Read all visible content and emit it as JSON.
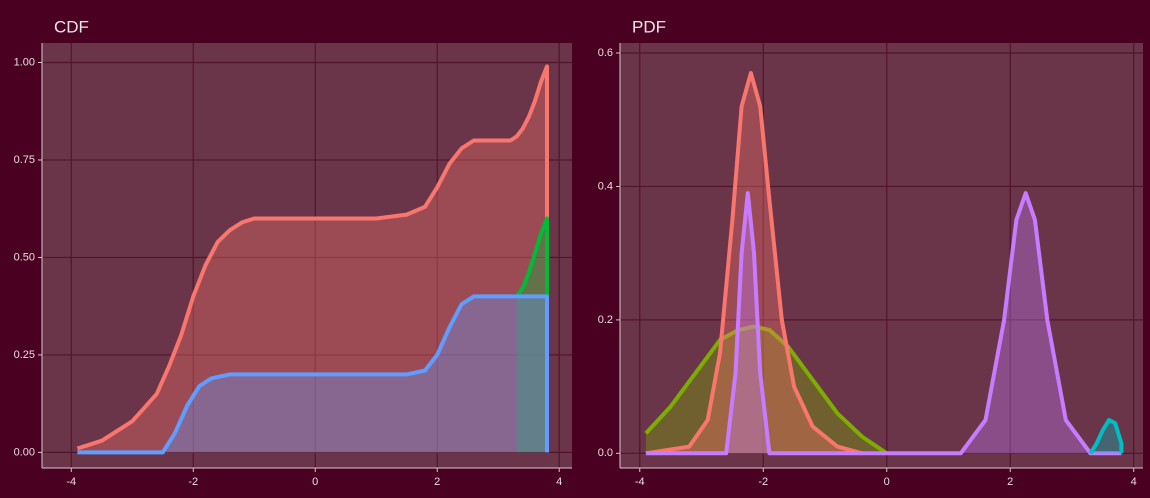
{
  "chart_data": [
    {
      "type": "area",
      "title": "CDF",
      "xlim": [
        -4.48,
        4.21
      ],
      "ylim": [
        -0.04,
        1.05
      ],
      "xticks": [
        -4,
        -2,
        0,
        2,
        4
      ],
      "yticks": [
        {
          "value": 0,
          "label": "0.00"
        },
        {
          "value": 0.25,
          "label": "0.25"
        },
        {
          "value": 0.5,
          "label": "0.50"
        },
        {
          "value": 0.75,
          "label": "0.75"
        },
        {
          "value": 1,
          "label": "1.00"
        }
      ],
      "grid": true,
      "series": [
        {
          "color": "#f8766d",
          "x": [
            -3.9,
            -3.5,
            -3.0,
            -2.6,
            -2.4,
            -2.2,
            -2.0,
            -1.8,
            -1.6,
            -1.4,
            -1.2,
            -1.0,
            0,
            1.0,
            1.5,
            1.8,
            2.0,
            2.2,
            2.4,
            2.6,
            3.2,
            3.3,
            3.4,
            3.5,
            3.6,
            3.7,
            3.8,
            3.8
          ],
          "values": [
            0.01,
            0.03,
            0.08,
            0.15,
            0.22,
            0.3,
            0.4,
            0.48,
            0.54,
            0.57,
            0.59,
            0.6,
            0.6,
            0.6,
            0.61,
            0.63,
            0.68,
            0.74,
            0.78,
            0.8,
            0.8,
            0.81,
            0.83,
            0.86,
            0.9,
            0.95,
            0.99,
            0
          ]
        },
        {
          "color": "#00ba38",
          "x": [
            3.3,
            3.4,
            3.5,
            3.6,
            3.7,
            3.8,
            3.8
          ],
          "values": [
            0.4,
            0.42,
            0.46,
            0.51,
            0.56,
            0.6,
            0.4
          ]
        },
        {
          "color": "#619cff",
          "x": [
            -3.9,
            -2.5,
            -2.3,
            -2.1,
            -1.9,
            -1.7,
            -1.4,
            1.5,
            1.8,
            2.0,
            2.2,
            2.4,
            2.6,
            3.8,
            3.8
          ],
          "values": [
            0,
            0,
            0.05,
            0.12,
            0.17,
            0.19,
            0.2,
            0.2,
            0.21,
            0.25,
            0.32,
            0.38,
            0.4,
            0.4,
            0
          ]
        }
      ]
    },
    {
      "type": "area",
      "title": "PDF",
      "xlim": [
        -4.32,
        4.15
      ],
      "ylim": [
        -0.022,
        0.615
      ],
      "xticks": [
        -4,
        -2,
        0,
        2,
        4
      ],
      "yticks": [
        {
          "value": 0,
          "label": "0.0"
        },
        0.2,
        0.4,
        0.6
      ],
      "grid": true,
      "series": [
        {
          "color": "#7cae00",
          "x": [
            -3.9,
            -3.5,
            -3.1,
            -2.7,
            -2.4,
            -2.15,
            -1.9,
            -1.6,
            -1.2,
            -0.8,
            -0.4,
            0
          ],
          "values": [
            0.03,
            0.07,
            0.12,
            0.17,
            0.185,
            0.19,
            0.185,
            0.16,
            0.11,
            0.06,
            0.025,
            0
          ]
        },
        {
          "color": "#f8766d",
          "x": [
            -3.9,
            -3.2,
            -2.9,
            -2.7,
            -2.5,
            -2.35,
            -2.2,
            -2.05,
            -1.9,
            -1.7,
            -1.5,
            -1.2,
            -0.8,
            -0.4
          ],
          "values": [
            0,
            0.01,
            0.05,
            0.15,
            0.35,
            0.52,
            0.57,
            0.52,
            0.38,
            0.2,
            0.1,
            0.04,
            0.01,
            0
          ]
        },
        {
          "color": "#c77cff",
          "x": [
            -3.9,
            -2.6,
            -2.45,
            -2.35,
            -2.25,
            -2.15,
            -2.05,
            -1.9,
            1.2,
            1.6,
            1.9,
            2.1,
            2.25,
            2.4,
            2.6,
            2.9,
            3.3,
            3.8
          ],
          "values": [
            0,
            0,
            0.12,
            0.3,
            0.39,
            0.3,
            0.12,
            0,
            0,
            0.05,
            0.2,
            0.35,
            0.39,
            0.35,
            0.2,
            0.05,
            0,
            0
          ]
        },
        {
          "color": "#00bfc4",
          "x": [
            3.3,
            3.4,
            3.5,
            3.6,
            3.7,
            3.8,
            3.8
          ],
          "values": [
            0,
            0.015,
            0.035,
            0.05,
            0.045,
            0.015,
            0
          ]
        }
      ]
    }
  ]
}
